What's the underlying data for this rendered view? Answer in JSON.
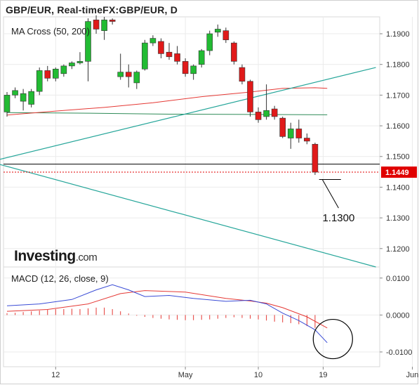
{
  "header": {
    "title": "GBP/EUR, Real-timeFX:GBP/EUR, D"
  },
  "watermark": {
    "brand": "Investing",
    "suffix": ".com"
  },
  "chart_data": [
    {
      "type": "candlestick",
      "panel": "price",
      "indicator_label": "MA Cross (50, 200)",
      "ylim": [
        1.114,
        1.1955
      ],
      "y_ticks": [
        {
          "value": 1.19,
          "label": "1.1900"
        },
        {
          "value": 1.18,
          "label": "1.1800"
        },
        {
          "value": 1.17,
          "label": "1.1700"
        },
        {
          "value": 1.16,
          "label": "1.1600"
        },
        {
          "value": 1.15,
          "label": "1.1500"
        },
        {
          "value": 1.14,
          "label": "1.1400"
        },
        {
          "value": 1.13,
          "label": "1.1300"
        },
        {
          "value": 1.12,
          "label": "1.1200"
        }
      ],
      "x_ticks": [
        {
          "index": 6,
          "label": "12"
        },
        {
          "index": 22,
          "label": "May"
        },
        {
          "index": 31,
          "label": "10"
        },
        {
          "index": 39,
          "label": "19"
        },
        {
          "index": 50,
          "label": "Jun"
        }
      ],
      "colors": {
        "up": "#22bb33",
        "down": "#e01a1a",
        "ma50": "#e53935",
        "ma200": "#2e8b57",
        "trend": "#26a69a",
        "support": "#000000",
        "last": "#e00000"
      },
      "candles": [
        {
          "o": 1.1645,
          "h": 1.171,
          "l": 1.163,
          "c": 1.17
        },
        {
          "o": 1.17,
          "h": 1.1725,
          "l": 1.169,
          "c": 1.1715
        },
        {
          "o": 1.168,
          "h": 1.172,
          "l": 1.165,
          "c": 1.1705
        },
        {
          "o": 1.167,
          "h": 1.172,
          "l": 1.166,
          "c": 1.1712
        },
        {
          "o": 1.1712,
          "h": 1.179,
          "l": 1.17,
          "c": 1.178
        },
        {
          "o": 1.178,
          "h": 1.1795,
          "l": 1.1745,
          "c": 1.1755
        },
        {
          "o": 1.1755,
          "h": 1.179,
          "l": 1.1745,
          "c": 1.1785
        },
        {
          "o": 1.177,
          "h": 1.18,
          "l": 1.176,
          "c": 1.1795
        },
        {
          "o": 1.1795,
          "h": 1.181,
          "l": 1.1785,
          "c": 1.1805
        },
        {
          "o": 1.1805,
          "h": 1.184,
          "l": 1.18,
          "c": 1.181
        },
        {
          "o": 1.181,
          "h": 1.195,
          "l": 1.1745,
          "c": 1.194
        },
        {
          "o": 1.1945,
          "h": 1.196,
          "l": 1.19,
          "c": 1.1915
        },
        {
          "o": 1.191,
          "h": 1.1955,
          "l": 1.188,
          "c": 1.1945
        },
        {
          "o": 1.1945,
          "h": 1.195,
          "l": 1.193,
          "c": 1.194
        },
        {
          "o": 1.176,
          "h": 1.1835,
          "l": 1.175,
          "c": 1.1775
        },
        {
          "o": 1.1775,
          "h": 1.18,
          "l": 1.1725,
          "c": 1.176
        },
        {
          "o": 1.174,
          "h": 1.178,
          "l": 1.172,
          "c": 1.1775
        },
        {
          "o": 1.1785,
          "h": 1.188,
          "l": 1.178,
          "c": 1.187
        },
        {
          "o": 1.187,
          "h": 1.1895,
          "l": 1.186,
          "c": 1.1885
        },
        {
          "o": 1.1875,
          "h": 1.1885,
          "l": 1.182,
          "c": 1.1835
        },
        {
          "o": 1.184,
          "h": 1.187,
          "l": 1.1815,
          "c": 1.1825
        },
        {
          "o": 1.1835,
          "h": 1.186,
          "l": 1.18,
          "c": 1.181
        },
        {
          "o": 1.181,
          "h": 1.182,
          "l": 1.176,
          "c": 1.177
        },
        {
          "o": 1.177,
          "h": 1.18,
          "l": 1.175,
          "c": 1.1795
        },
        {
          "o": 1.18,
          "h": 1.185,
          "l": 1.179,
          "c": 1.1845
        },
        {
          "o": 1.1845,
          "h": 1.191,
          "l": 1.183,
          "c": 1.19
        },
        {
          "o": 1.1905,
          "h": 1.193,
          "l": 1.189,
          "c": 1.1915
        },
        {
          "o": 1.191,
          "h": 1.192,
          "l": 1.187,
          "c": 1.188
        },
        {
          "o": 1.187,
          "h": 1.1875,
          "l": 1.18,
          "c": 1.181
        },
        {
          "o": 1.179,
          "h": 1.18,
          "l": 1.1735,
          "c": 1.1745
        },
        {
          "o": 1.1745,
          "h": 1.175,
          "l": 1.163,
          "c": 1.1645
        },
        {
          "o": 1.1645,
          "h": 1.166,
          "l": 1.161,
          "c": 1.162
        },
        {
          "o": 1.163,
          "h": 1.1735,
          "l": 1.162,
          "c": 1.165
        },
        {
          "o": 1.1655,
          "h": 1.1665,
          "l": 1.162,
          "c": 1.163
        },
        {
          "o": 1.1625,
          "h": 1.163,
          "l": 1.156,
          "c": 1.1565
        },
        {
          "o": 1.156,
          "h": 1.161,
          "l": 1.1525,
          "c": 1.159
        },
        {
          "o": 1.159,
          "h": 1.162,
          "l": 1.1545,
          "c": 1.156
        },
        {
          "o": 1.156,
          "h": 1.1575,
          "l": 1.154,
          "c": 1.155
        },
        {
          "o": 1.154,
          "h": 1.1545,
          "l": 1.144,
          "c": 1.1449
        }
      ],
      "ma50": [
        {
          "x": 0,
          "y": 1.1635
        },
        {
          "x": 6,
          "y": 1.1648
        },
        {
          "x": 12,
          "y": 1.166
        },
        {
          "x": 18,
          "y": 1.1675
        },
        {
          "x": 24,
          "y": 1.1695
        },
        {
          "x": 30,
          "y": 1.171
        },
        {
          "x": 34,
          "y": 1.1722
        },
        {
          "x": 38,
          "y": 1.1724
        },
        {
          "x": 39.5,
          "y": 1.1722
        }
      ],
      "ma200": [
        {
          "x": 0,
          "y": 1.1643
        },
        {
          "x": 10,
          "y": 1.1641
        },
        {
          "x": 20,
          "y": 1.1638
        },
        {
          "x": 30,
          "y": 1.1637
        },
        {
          "x": 39.5,
          "y": 1.1636
        }
      ],
      "trend_upper": [
        {
          "x": -1,
          "y": 1.149
        },
        {
          "x": 45.5,
          "y": 1.179
        }
      ],
      "trend_lower": [
        {
          "x": -1,
          "y": 1.1475
        },
        {
          "x": 45.5,
          "y": 1.114
        }
      ],
      "support": {
        "value": 1.1475
      },
      "last_price": {
        "value": 1.1449,
        "label": "1.1449"
      },
      "target": {
        "value": 1.13,
        "label": "1.1300",
        "from": {
          "x": 38.5,
          "y": 1.1425
        },
        "to": {
          "x": 40.5,
          "y": 1.1425
        }
      }
    },
    {
      "type": "line",
      "panel": "macd",
      "indicator_label": "MACD (12, 26, close, 9)",
      "ylim": [
        -0.014,
        0.013
      ],
      "y_ticks": [
        {
          "value": 0.01,
          "label": "0.0100"
        },
        {
          "value": 0.0,
          "label": "0.0000"
        },
        {
          "value": -0.01,
          "label": "-0.0100"
        }
      ],
      "macd_line": [
        {
          "x": 0,
          "y": 0.0025
        },
        {
          "x": 4,
          "y": 0.003
        },
        {
          "x": 8,
          "y": 0.0042
        },
        {
          "x": 11,
          "y": 0.0068
        },
        {
          "x": 13,
          "y": 0.0082
        },
        {
          "x": 15,
          "y": 0.0068
        },
        {
          "x": 17,
          "y": 0.005
        },
        {
          "x": 20,
          "y": 0.0053
        },
        {
          "x": 23,
          "y": 0.0045
        },
        {
          "x": 27,
          "y": 0.0037
        },
        {
          "x": 30,
          "y": 0.004
        },
        {
          "x": 32,
          "y": 0.003
        },
        {
          "x": 34,
          "y": 0.0005
        },
        {
          "x": 36,
          "y": -0.0015
        },
        {
          "x": 38,
          "y": -0.004
        },
        {
          "x": 39.5,
          "y": -0.0075
        }
      ],
      "signal_line": [
        {
          "x": 0,
          "y": 0.001
        },
        {
          "x": 5,
          "y": 0.0015
        },
        {
          "x": 10,
          "y": 0.003
        },
        {
          "x": 14,
          "y": 0.0058
        },
        {
          "x": 17,
          "y": 0.0066
        },
        {
          "x": 22,
          "y": 0.0062
        },
        {
          "x": 27,
          "y": 0.0045
        },
        {
          "x": 30,
          "y": 0.0038
        },
        {
          "x": 32,
          "y": 0.0032
        },
        {
          "x": 34,
          "y": 0.002
        },
        {
          "x": 37,
          "y": -0.0005
        },
        {
          "x": 39.5,
          "y": -0.0035
        }
      ],
      "histogram": [
        0.0005,
        0.0006,
        0.0008,
        0.001,
        0.0012,
        0.0014,
        0.0016,
        0.0016,
        0.0017,
        0.0016,
        0.0018,
        0.002,
        0.002,
        0.0016,
        0.001,
        0.0004,
        -0.0002,
        -0.0005,
        -0.0008,
        -0.001,
        -0.0012,
        -0.0013,
        -0.0014,
        -0.0014,
        -0.0013,
        -0.0012,
        -0.001,
        -0.0008,
        -0.0006,
        -0.0008,
        -0.001,
        -0.0012,
        -0.0015,
        -0.0018,
        -0.002,
        -0.0022,
        -0.0025,
        -0.003,
        -0.0035
      ],
      "colors": {
        "macd": "#3a4cd6",
        "signal": "#e53935",
        "histogram": "#e53935"
      },
      "circle_highlight": {
        "x": 40.2,
        "y": -0.0065
      }
    }
  ]
}
